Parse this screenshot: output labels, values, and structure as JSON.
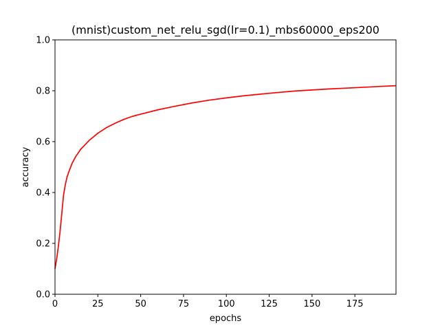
{
  "chart_data": {
    "type": "line",
    "title": "(mnist)custom_net_relu_sgd(lr=0.1)_mbs60000_eps200",
    "xlabel": "epochs",
    "ylabel": "accuracy",
    "xlim": [
      0,
      199
    ],
    "ylim": [
      0.0,
      1.0
    ],
    "xticks": [
      0,
      25,
      50,
      75,
      100,
      125,
      150,
      175
    ],
    "yticks": [
      0.0,
      0.2,
      0.4,
      0.6,
      0.8,
      1.0
    ],
    "xtick_labels": [
      "0",
      "25",
      "50",
      "75",
      "100",
      "125",
      "150",
      "175"
    ],
    "ytick_labels": [
      "0.0",
      "0.2",
      "0.4",
      "0.6",
      "0.8",
      "1.0"
    ],
    "grid": false,
    "series": [
      {
        "color": "#ff0000",
        "x": [
          0,
          1,
          2,
          3,
          4,
          5,
          6,
          7,
          8,
          10,
          12,
          15,
          20,
          25,
          30,
          35,
          40,
          45,
          50,
          60,
          70,
          80,
          90,
          100,
          110,
          125,
          140,
          150,
          160,
          175,
          190,
          199
        ],
        "y": [
          0.1,
          0.14,
          0.19,
          0.25,
          0.32,
          0.39,
          0.43,
          0.46,
          0.48,
          0.515,
          0.54,
          0.57,
          0.605,
          0.633,
          0.655,
          0.672,
          0.687,
          0.699,
          0.708,
          0.725,
          0.739,
          0.752,
          0.763,
          0.772,
          0.78,
          0.79,
          0.799,
          0.803,
          0.807,
          0.812,
          0.817,
          0.82
        ]
      }
    ]
  }
}
